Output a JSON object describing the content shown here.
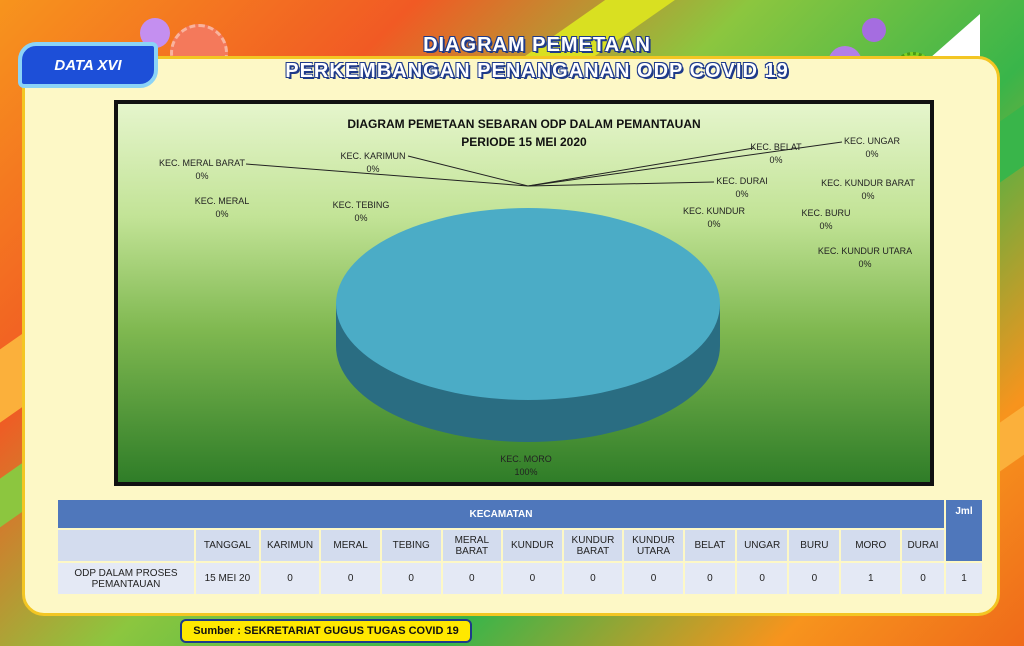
{
  "badge": "DATA XVI",
  "title_line1": "DIAGRAM PEMETAAN",
  "title_line2": "PERKEMBANGAN PENANGANAN ODP  COVID 19",
  "chart_data": {
    "type": "pie",
    "title": "DIAGRAM PEMETAAN SEBARAN ODP DALAM PEMANTAUAN",
    "subtitle": "PERIODE 15 MEI 2020",
    "slices": [
      {
        "label": "KEC. KARIMUN",
        "value": 0,
        "pct": "0%"
      },
      {
        "label": "KEC.  MERAL",
        "value": 0,
        "pct": "0%"
      },
      {
        "label": "KEC. TEBING",
        "value": 0,
        "pct": "0%"
      },
      {
        "label": "KEC. MERAL BARAT",
        "value": 0,
        "pct": "0%"
      },
      {
        "label": "KEC. KUNDUR",
        "value": 0,
        "pct": "0%"
      },
      {
        "label": "KEC. KUNDUR BARAT",
        "value": 0,
        "pct": "0%"
      },
      {
        "label": "KEC. KUNDUR UTARA",
        "value": 0,
        "pct": "0%"
      },
      {
        "label": "KEC. BELAT",
        "value": 0,
        "pct": "0%"
      },
      {
        "label": "KEC. UNGAR",
        "value": 0,
        "pct": "0%"
      },
      {
        "label": "KEC. BURU",
        "value": 0,
        "pct": "0%"
      },
      {
        "label": "KEC. MORO",
        "value": 1,
        "pct": "100%"
      },
      {
        "label": "KEC.  DURAI",
        "value": 0,
        "pct": "0%"
      }
    ],
    "pie_color": "#4bacc6"
  },
  "table": {
    "group_header": "KECAMATAN",
    "total_header": "Jml",
    "date_header": "TANGGAL",
    "columns": [
      "KARIMUN",
      "MERAL",
      "TEBING",
      "MERAL BARAT",
      "KUNDUR",
      "KUNDUR BARAT",
      "KUNDUR UTARA",
      "BELAT",
      "UNGAR",
      "BURU",
      "MORO",
      "DURAI"
    ],
    "row_label": "ODP DALAM PROSES PEMANTAUAN",
    "row_date": "15 MEI 20",
    "row_values": [
      "0",
      "0",
      "0",
      "0",
      "0",
      "0",
      "0",
      "0",
      "0",
      "0",
      "1",
      "0"
    ],
    "row_total": "1"
  },
  "source": "Sumber : SEKRETARIAT GUGUS TUGAS COVID 19"
}
